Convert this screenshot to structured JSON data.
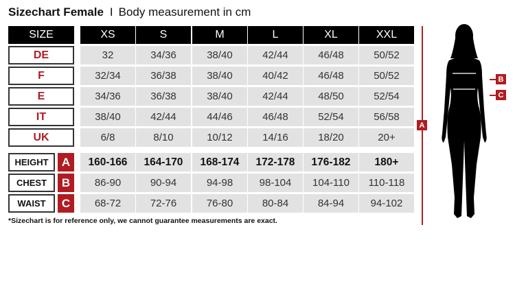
{
  "title": {
    "bold": "Sizechart Female",
    "separator": "I",
    "subtitle": "Body measurement in cm"
  },
  "header": {
    "label": "SIZE",
    "sizes": [
      "XS",
      "S",
      "M",
      "L",
      "XL",
      "XXL"
    ]
  },
  "size_rows": [
    {
      "label": "DE",
      "values": [
        "32",
        "34/36",
        "38/40",
        "42/44",
        "46/48",
        "50/52"
      ]
    },
    {
      "label": "F",
      "values": [
        "32/34",
        "36/38",
        "38/40",
        "40/42",
        "46/48",
        "50/52"
      ]
    },
    {
      "label": "E",
      "values": [
        "34/36",
        "36/38",
        "38/40",
        "42/44",
        "48/50",
        "52/54"
      ]
    },
    {
      "label": "IT",
      "values": [
        "38/40",
        "42/44",
        "44/46",
        "46/48",
        "52/54",
        "56/58"
      ]
    },
    {
      "label": "UK",
      "values": [
        "6/8",
        "8/10",
        "10/12",
        "14/16",
        "18/20",
        "20+"
      ]
    }
  ],
  "measure_rows": [
    {
      "label": "HEIGHT",
      "badge": "A",
      "bold": true,
      "values": [
        "160-166",
        "164-170",
        "168-174",
        "172-178",
        "176-182",
        "180+"
      ]
    },
    {
      "label": "CHEST",
      "badge": "B",
      "bold": false,
      "values": [
        "86-90",
        "90-94",
        "94-98",
        "98-104",
        "104-110",
        "110-118"
      ]
    },
    {
      "label": "WAIST",
      "badge": "C",
      "bold": false,
      "values": [
        "68-72",
        "72-76",
        "76-80",
        "80-84",
        "84-94",
        "94-102"
      ]
    }
  ],
  "footnote": "*Sizechart is for reference only, we cannot guarantee measurements are exact.",
  "figure": {
    "height_marker": "A",
    "chest_marker": "B",
    "waist_marker": "C"
  },
  "colors": {
    "accent": "#b01c22",
    "header_bg": "#000000",
    "cell_bg": "#e2e2e2"
  }
}
